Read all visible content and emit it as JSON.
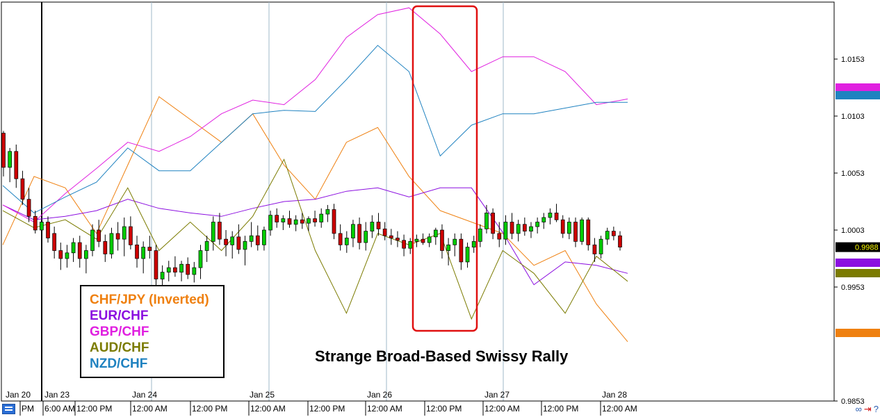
{
  "chart_data": {
    "type": "line",
    "annotation": "Strange Broad-Based Swissy Rally",
    "y_axis": {
      "ticks": [
        "1.0153",
        "1.0103",
        "1.0053",
        "1.0003",
        "0.9953",
        "0.9853"
      ],
      "current_price": "0.9988",
      "ylim": [
        0.9853,
        1.0203
      ]
    },
    "x_axis": {
      "date_labels": [
        "Jan 20",
        "Jan 23",
        "Jan 24",
        "Jan 25",
        "Jan 26",
        "Jan 27",
        "Jan 28"
      ],
      "time_labels": [
        "PM",
        "6:00 AM",
        "12:00 PM",
        "12:00 AM",
        "12:00 PM",
        "12:00 AM",
        "12:00 PM",
        "12:00 AM",
        "12:00 PM",
        "12:00 AM",
        "12:00 PM",
        "12:00 AM"
      ]
    },
    "series": [
      {
        "name": "CHF/JPY (Inverted)",
        "color": "#ef8010",
        "values": [
          0.999,
          1.005,
          1.004,
          1.0,
          1.006,
          1.012,
          1.01,
          1.008,
          1.0105,
          1.006,
          1.003,
          1.008,
          1.0093,
          1.005,
          1.002,
          1.001,
          1.0,
          0.9972,
          0.9985,
          0.9938,
          0.9905
        ]
      },
      {
        "name": "EUR/CHF",
        "color": "#8b0ee0",
        "values": [
          1.0025,
          1.0012,
          1.0015,
          1.002,
          1.003,
          1.0022,
          1.0018,
          1.0015,
          1.0022,
          1.0028,
          1.003,
          1.0037,
          1.004,
          1.0032,
          1.004,
          1.004,
          1.0001,
          0.9955,
          0.9975,
          0.9972,
          0.9965
        ]
      },
      {
        "name": "GBP/CHF",
        "color": "#e020e0",
        "values": [
          1.0025,
          1.001,
          1.0035,
          1.0057,
          1.008,
          1.0072,
          1.0085,
          1.0105,
          1.0117,
          1.0113,
          1.0135,
          1.0172,
          1.0192,
          1.0198,
          1.0175,
          1.0142,
          1.0155,
          1.0155,
          1.0142,
          1.0113,
          1.0118
        ]
      },
      {
        "name": "AUD/CHF",
        "color": "#7b7b00",
        "values": [
          1.002,
          1.0005,
          1.0012,
          0.9995,
          1.004,
          0.9985,
          1.001,
          0.9985,
          1.0015,
          1.0065,
          0.9985,
          0.993,
          1.0,
          0.999,
          1.0,
          0.9925,
          0.9985,
          0.9965,
          0.993,
          0.998,
          0.9958
        ]
      },
      {
        "name": "NZD/CHF",
        "color": "#1f82c0",
        "values": [
          1.0042,
          1.0018,
          1.0032,
          1.0045,
          1.0075,
          1.0055,
          1.0055,
          1.008,
          1.0105,
          1.0108,
          1.0107,
          1.0135,
          1.0165,
          1.0142,
          1.0068,
          1.0095,
          1.0105,
          1.0105,
          1.011,
          1.0115,
          1.0115
        ]
      }
    ],
    "ohlc": [
      [
        1.0088,
        1.009,
        1.005,
        1.0058
      ],
      [
        1.0058,
        1.0075,
        1.0045,
        1.0072
      ],
      [
        1.0072,
        1.0078,
        1.004,
        1.0048
      ],
      [
        1.0048,
        1.0055,
        1.0025,
        1.003
      ],
      [
        1.003,
        1.004,
        1.001,
        1.0015
      ],
      [
        1.0015,
        1.002,
        1.0,
        1.0003
      ],
      [
        1.0003,
        1.0012,
        0.9995,
        1.001
      ],
      [
        1.001,
        1.0015,
        0.9992,
        0.9996
      ],
      [
        1.0,
        1.0006,
        0.9978,
        0.9985
      ],
      [
        0.9985,
        0.9992,
        0.9968,
        0.9978
      ],
      [
        0.9978,
        0.999,
        0.997,
        0.9983
      ],
      [
        0.9983,
        0.9996,
        0.9975,
        0.9992
      ],
      [
        0.9992,
        0.9998,
        0.997,
        0.9978
      ],
      [
        0.9978,
        0.999,
        0.9965,
        0.9985
      ],
      [
        0.9985,
        1.0008,
        0.998,
        1.0003
      ],
      [
        1.0003,
        1.0012,
        0.9988,
        0.9993
      ],
      [
        0.9993,
        0.9999,
        0.9975,
        0.9982
      ],
      [
        0.9982,
        1.0005,
        0.9978,
        1.0
      ],
      [
        1.0,
        1.001,
        0.9985,
        0.9995
      ],
      [
        0.9995,
        1.0014,
        0.998,
        1.0006
      ],
      [
        1.0006,
        1.0015,
        0.9986,
        0.999
      ],
      [
        0.999,
        0.9998,
        0.997,
        0.9978
      ],
      [
        0.9978,
        0.9993,
        0.9965,
        0.9988
      ],
      [
        0.9988,
        0.9998,
        0.9978,
        0.9985
      ],
      [
        0.9985,
        0.999,
        0.9952,
        0.996
      ],
      [
        0.996,
        0.9972,
        0.995,
        0.9966
      ],
      [
        0.9966,
        0.9976,
        0.9958,
        0.997
      ],
      [
        0.997,
        0.998,
        0.9962,
        0.9966
      ],
      [
        0.9966,
        0.9976,
        0.9958,
        0.9973
      ],
      [
        0.9973,
        0.9979,
        0.996,
        0.9964
      ],
      [
        0.9964,
        0.9975,
        0.9957,
        0.997
      ],
      [
        0.997,
        0.999,
        0.996,
        0.9985
      ],
      [
        0.9985,
        0.9998,
        0.9975,
        0.9993
      ],
      [
        0.9993,
        1.0015,
        0.9985,
        1.001
      ],
      [
        1.001,
        1.0018,
        0.999,
        0.9995
      ],
      [
        0.9995,
        1.0003,
        0.998,
        0.999
      ],
      [
        0.999,
        1.0002,
        0.9978,
        0.9997
      ],
      [
        0.9997,
        1.0008,
        0.9982,
        0.9986
      ],
      [
        0.9986,
        0.9998,
        0.9972,
        0.9993
      ],
      [
        0.9993,
        1.001,
        0.9988,
        0.9998
      ],
      [
        0.9998,
        1.0007,
        0.9985,
        0.999
      ],
      [
        0.999,
        1.0006,
        0.9985,
        1.0003
      ],
      [
        1.0003,
        1.002,
        0.9998,
        1.0016
      ],
      [
        1.0016,
        1.0022,
        1.0005,
        1.001
      ],
      [
        1.001,
        1.0016,
        1.0003,
        1.0013
      ],
      [
        1.0013,
        1.002,
        1.0005,
        1.0008
      ],
      [
        1.0008,
        1.0016,
        1.0002,
        1.0012
      ],
      [
        1.0012,
        1.0018,
        1.0004,
        1.0009
      ],
      [
        1.0009,
        1.0015,
        1.0002,
        1.0013
      ],
      [
        1.0013,
        1.002,
        1.0006,
        1.001
      ],
      [
        1.001,
        1.0022,
        1.0005,
        1.0017
      ],
      [
        1.0017,
        1.0025,
        1.001,
        1.0021
      ],
      [
        1.0021,
        1.0026,
        0.9995,
        1.0
      ],
      [
        1.0,
        1.0008,
        0.9985,
        0.999
      ],
      [
        0.999,
        1.0002,
        0.9983,
        0.9996
      ],
      [
        0.9996,
        1.0012,
        0.9988,
        1.0008
      ],
      [
        1.0008,
        1.0014,
        0.9986,
        0.9992
      ],
      [
        0.9992,
        1.001,
        0.9985,
        1.0002
      ],
      [
        1.0002,
        1.0016,
        0.9996,
        1.001
      ],
      [
        1.001,
        1.0018,
        0.9998,
        1.0004
      ],
      [
        1.0004,
        1.001,
        0.9994,
        0.9998
      ],
      [
        0.9998,
        1.0004,
        0.999,
        0.9996
      ],
      [
        0.9996,
        1.0002,
        0.9988,
        0.9994
      ],
      [
        0.9994,
        0.9999,
        0.998,
        0.9987
      ],
      [
        0.9987,
        0.9996,
        0.9982,
        0.9993
      ],
      [
        0.9993,
        0.9999,
        0.9988,
        0.9995
      ],
      [
        0.9995,
        1.0,
        0.999,
        0.9992
      ],
      [
        0.9992,
        1.0,
        0.9988,
        0.9997
      ],
      [
        0.9997,
        1.0005,
        0.999,
        1.0003
      ],
      [
        1.0003,
        1.0008,
        0.9978,
        0.9985
      ],
      [
        0.9985,
        0.9996,
        0.9972,
        0.999
      ],
      [
        0.999,
        1.0,
        0.998,
        0.9995
      ],
      [
        0.9995,
        1.0,
        0.9968,
        0.9975
      ],
      [
        0.9975,
        0.9992,
        0.997,
        0.9988
      ],
      [
        0.9988,
        0.9998,
        0.9983,
        0.9993
      ],
      [
        0.9993,
        1.0008,
        0.9988,
        1.0004
      ],
      [
        1.0004,
        1.0025,
        1.0,
        1.0018
      ],
      [
        1.0018,
        1.0022,
        0.9995,
        1.0
      ],
      [
        1.0,
        1.001,
        0.9988,
        0.9995
      ],
      [
        0.9995,
        1.0016,
        0.999,
        1.001
      ],
      [
        1.001,
        1.0018,
        0.9995,
        1.0
      ],
      [
        1.0,
        1.0012,
        0.9993,
        1.0008
      ],
      [
        1.0008,
        1.0014,
        0.9998,
        1.0002
      ],
      [
        1.0002,
        1.001,
        0.9996,
        1.0006
      ],
      [
        1.0006,
        1.0014,
        1.0,
        1.001
      ],
      [
        1.001,
        1.0018,
        1.0004,
        1.0014
      ],
      [
        1.0014,
        1.0022,
        1.0008,
        1.0018
      ],
      [
        1.0018,
        1.0026,
        1.001,
        1.0012
      ],
      [
        1.0012,
        1.0016,
        0.9996,
        1.0
      ],
      [
        1.0,
        1.0014,
        0.9995,
        1.001
      ],
      [
        1.001,
        1.0014,
        0.9988,
        0.9993
      ],
      [
        0.9993,
        1.0014,
        0.999,
        1.0012
      ],
      [
        1.0012,
        1.0014,
        0.9985,
        0.999
      ],
      [
        0.999,
        0.9996,
        0.9975,
        0.9982
      ],
      [
        0.9982,
        0.9998,
        0.9978,
        0.9995
      ],
      [
        0.9995,
        1.0005,
        0.999,
        1.0002
      ],
      [
        1.0002,
        1.0006,
        0.9994,
        0.9998
      ],
      [
        0.9998,
        1.0002,
        0.9985,
        0.9988
      ]
    ],
    "right_markers": [
      {
        "series": "GBP/CHF",
        "color": "#e020e0"
      },
      {
        "series": "NZD/CHF",
        "color": "#1f82c0"
      },
      {
        "series": "EUR/CHF",
        "color": "#8b0ee0"
      },
      {
        "series": "AUD/CHF",
        "color": "#7b7b00"
      },
      {
        "series": "CHF/JPY (Inverted)",
        "color": "#ef8010"
      }
    ],
    "colors": {
      "bull": "#00cc00",
      "bear": "#cc0000",
      "highlight_box": "#e01010",
      "current_price_bg": "#000000",
      "current_price_fg": "#ffff00"
    },
    "grid": false
  },
  "legend": {
    "items": [
      {
        "label": "CHF/JPY (Inverted)",
        "color": "#ef8010"
      },
      {
        "label": "EUR/CHF",
        "color": "#8b0ee0"
      },
      {
        "label": "GBP/CHF",
        "color": "#e020e0"
      },
      {
        "label": "AUD/CHF",
        "color": "#7b7b00"
      },
      {
        "label": "NZD/CHF",
        "color": "#1f82c0"
      }
    ]
  },
  "annotation_text": "Strange Broad-Based Swissy Rally",
  "toolbar": {
    "icons": [
      "menu-icon",
      "link-icon",
      "arrow-right-icon",
      "help-icon"
    ]
  }
}
